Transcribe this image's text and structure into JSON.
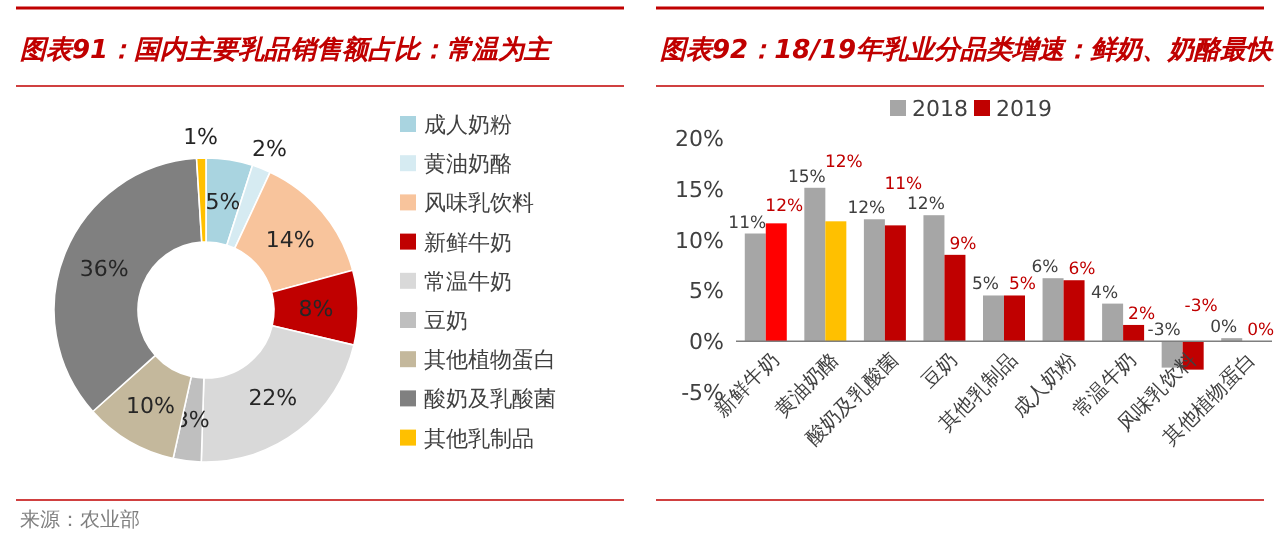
{
  "chart_data": [
    {
      "type": "donut",
      "title": "图表91：国内主要乳品销售额占比：常温为主",
      "categories": [
        "成人奶粉",
        "黄油奶酪",
        "风味乳饮料",
        "新鲜牛奶",
        "常温牛奶",
        "豆奶",
        "其他植物蛋白",
        "酸奶及乳酸菌",
        "其他乳制品"
      ],
      "values": [
        5,
        2,
        14,
        8,
        22,
        3,
        10,
        36,
        1
      ],
      "value_labels": [
        "5%",
        "2%",
        "14%",
        "8%",
        "22%",
        "3%",
        "10%",
        "36%",
        "1%"
      ],
      "colors": [
        "#a9d4e0",
        "#d6ebf2",
        "#f8c49c",
        "#c00000",
        "#d9d9d9",
        "#bfbfbf",
        "#c4b89c",
        "#808080",
        "#ffc000"
      ],
      "legend": "right",
      "annotations": [
        "来源：农业部"
      ]
    },
    {
      "type": "bar",
      "title": "图表92：18/19年乳业分品类增速：鲜奶、奶酪最快",
      "categories": [
        "新鲜牛奶",
        "黄油奶酪",
        "酸奶及乳酸菌",
        "豆奶",
        "其他乳制品",
        "成人奶粉",
        "常温牛奶",
        "风味乳饮料",
        "其他植物蛋白"
      ],
      "series": [
        {
          "name": "2018",
          "color": "#a6a6a6",
          "values": [
            10.6,
            15.1,
            12.0,
            12.4,
            4.5,
            6.2,
            3.7,
            -2.6,
            0.3
          ],
          "value_labels": [
            "11%",
            "15%",
            "12%",
            "12%",
            "5%",
            "6%",
            "4%",
            "-3%",
            "0%"
          ]
        },
        {
          "name": "2019",
          "color": "#c00000",
          "colors": [
            "#ff0000",
            "#ffc000",
            "#c00000",
            "#c00000",
            "#c00000",
            "#c00000",
            "#c00000",
            "#c00000",
            "#c00000"
          ],
          "values": [
            11.6,
            11.8,
            11.4,
            8.5,
            4.5,
            6.0,
            1.6,
            -2.8,
            0.0
          ],
          "value_labels": [
            "12%",
            "12%",
            "11%",
            "9%",
            "5%",
            "6%",
            "2%",
            "-3%",
            "0%"
          ]
        }
      ],
      "ylim": [
        -5,
        20
      ],
      "yticks": [
        {
          "value": -5,
          "label": "-5%"
        },
        {
          "value": 0,
          "label": "0%"
        },
        {
          "value": 5,
          "label": "5%"
        },
        {
          "value": 10,
          "label": "10%"
        },
        {
          "value": 15,
          "label": "15%"
        },
        {
          "value": 20,
          "label": "20%"
        }
      ],
      "legend": "top"
    }
  ]
}
